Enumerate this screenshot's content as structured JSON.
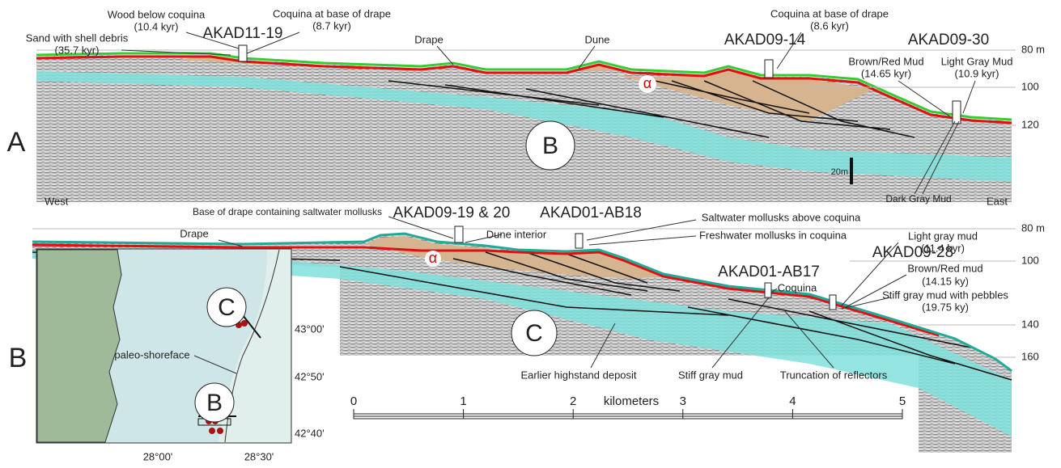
{
  "panel_a": {
    "letter": "A",
    "west": "West",
    "east": "East",
    "unit_circle": "B",
    "alpha": "α",
    "scale": "20m",
    "depths": [
      "80 m",
      "100",
      "120"
    ],
    "cores": [
      "AKAD11-19",
      "AKAD09-14",
      "AKAD09-30"
    ],
    "notes": [
      [
        "Sand with shell debris",
        "(35.7 kyr)"
      ],
      [
        "Wood below coquina",
        "(10.4 kyr)"
      ],
      [
        "Coquina at base of drape",
        "(8.7 kyr)"
      ],
      [
        "Drape"
      ],
      [
        "Dune"
      ],
      [
        "Coquina at base of drape",
        "(8.6 kyr)"
      ],
      [
        "Brown/Red Mud",
        "(14.65 kyr)"
      ],
      [
        "Light Gray Mud",
        "(10.9 kyr)"
      ],
      [
        "Dark Gray Mud"
      ]
    ]
  },
  "panel_c": {
    "unit_circle": "C",
    "alpha": "α",
    "depths": [
      "80 m",
      "100",
      "140",
      "160"
    ],
    "cores": [
      "AKAD09-19 & 20",
      "AKAD01-AB18",
      "AKAD09-28",
      "AKAD01-AB17"
    ],
    "notes": [
      [
        "Base of drape containing saltwater mollusks"
      ],
      [
        "Saltwater mollusks above coquina"
      ],
      [
        "Freshwater mollusks in coquina"
      ],
      [
        "Drape"
      ],
      [
        "Dune interior"
      ],
      [
        "Coquina"
      ],
      [
        "Light gray mud",
        "(11.4 kyr)"
      ],
      [
        "Brown/Red mud",
        "(14.15 ky)"
      ],
      [
        "Stiff gray mud with pebbles",
        "(19.75 ky)"
      ],
      [
        "Earlier highstand deposit"
      ],
      [
        "Stiff gray mud"
      ],
      [
        "Truncation of reflectors"
      ]
    ]
  },
  "scale_bar": {
    "ticks": [
      0,
      1,
      2,
      3,
      4,
      5
    ],
    "unit": "kilometers"
  },
  "map": {
    "letter": "B",
    "sites": [
      "C",
      "B"
    ],
    "shoreline": "paleo-shoreface",
    "lat": [
      "43°00'",
      "42°50'",
      "42°40'"
    ],
    "lon": [
      "28°00'",
      "28°30'"
    ]
  }
}
